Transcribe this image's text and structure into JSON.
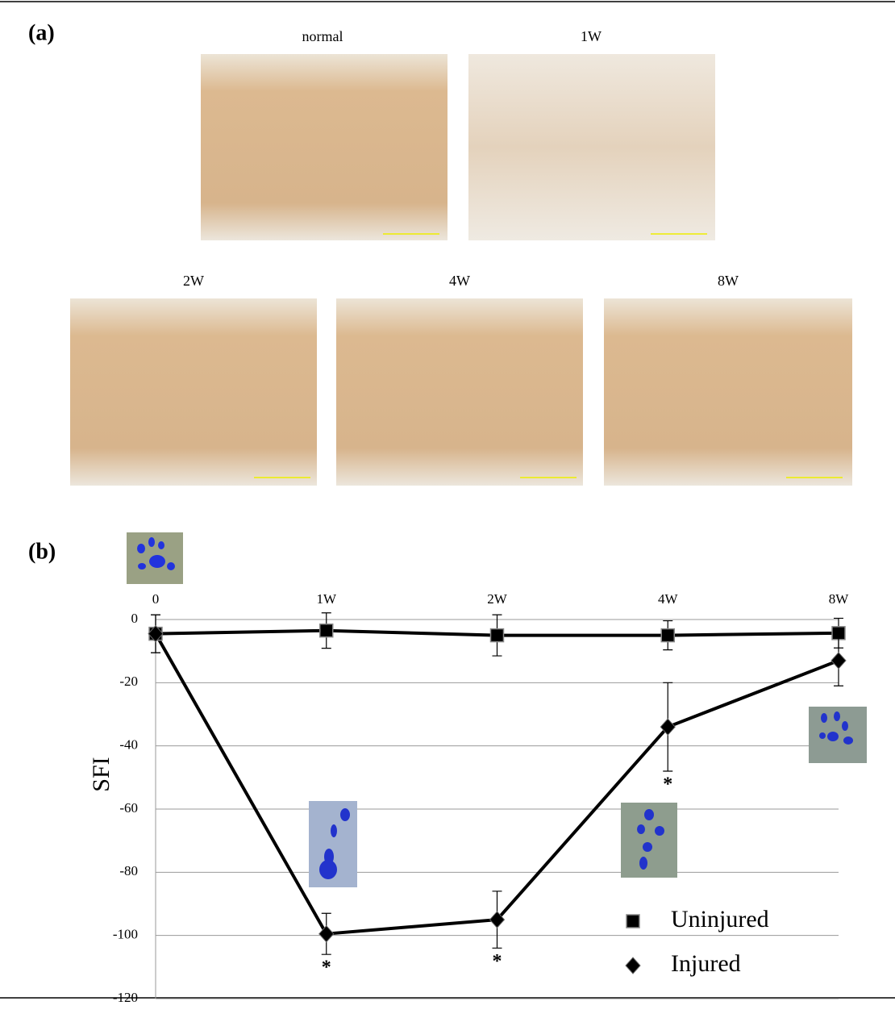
{
  "panel_a": {
    "label": "(a)",
    "images": [
      "normal",
      "1W",
      "2W",
      "4W",
      "8W"
    ]
  },
  "chart_data": {
    "type": "line",
    "panel_label": "(b)",
    "y_label": "SFI",
    "categories": [
      "0",
      "1W",
      "2W",
      "4W",
      "8W"
    ],
    "series": [
      {
        "name": "Uninjured",
        "color": "#000000",
        "marker": "square",
        "values": [
          -4.5,
          -3.5,
          -5,
          -5,
          -4.3
        ],
        "errors": [
          6,
          5.6,
          6.5,
          4.6,
          4.7
        ],
        "significance": [
          null,
          null,
          null,
          null,
          null
        ]
      },
      {
        "name": "Injured",
        "color": "#000000",
        "marker": "diamond",
        "values": [
          -4.5,
          -99.5,
          -95,
          -34,
          -13
        ],
        "errors": [
          6,
          6.5,
          9,
          14,
          8
        ],
        "significance": [
          null,
          "*",
          "*",
          "*",
          null
        ]
      }
    ],
    "ylim": [
      -120,
      0
    ],
    "yticks": [
      0,
      -20,
      -40,
      -60,
      -80,
      -100,
      -120
    ],
    "grid": true,
    "legend": "lower right"
  }
}
